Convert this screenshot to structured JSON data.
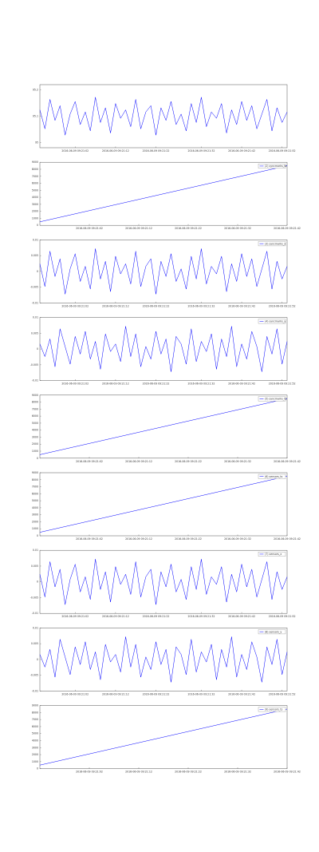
{
  "chart_data": [
    {
      "type": "line",
      "color": "#0000ff",
      "categories": [
        null,
        null,
        null,
        null,
        null,
        null,
        null,
        "2016-06-09 09:21:02",
        null,
        null,
        null,
        null,
        null,
        null,
        null,
        "2016-06-09 09:21:12",
        null,
        null,
        null,
        null,
        null,
        null,
        null,
        "2016-06-09 09:21:22",
        null,
        null,
        null,
        null,
        null,
        null,
        null,
        null,
        "2016-06-09 09:21:32",
        null,
        null,
        null,
        null,
        null,
        null,
        null,
        "2016-06-09 09:21:42",
        null,
        null,
        null,
        null,
        null,
        null,
        null,
        "2016-06-09 09:21:52",
        null
      ],
      "values": [
        95.124,
        95.052,
        95.164,
        95.084,
        95.14,
        95.028,
        95.108,
        95.156,
        95.068,
        95.116,
        95.044,
        95.172,
        95.076,
        95.132,
        95.036,
        95.148,
        95.092,
        95.124,
        95.06,
        95.164,
        95.052,
        95.116,
        95.14,
        95.028,
        95.132,
        95.084,
        95.156,
        95.068,
        95.108,
        95.044,
        95.148,
        95.076,
        95.172,
        95.06,
        95.116,
        95.092,
        95.148,
        95.036,
        95.124,
        95.068,
        95.156,
        95.084,
        95.14,
        95.052,
        95.108,
        95.164,
        95.044,
        95.132,
        95.076,
        95.116
      ],
      "ylim": [
        94.98,
        95.22
      ],
      "yticks": [
        95,
        95.1,
        95.2
      ]
    },
    {
      "type": "line",
      "color": "#0000ff",
      "series_name": "(2) syncmarks_ts",
      "categories": [
        null,
        null,
        "2016-06-09 09:21:02",
        null,
        "2016-06-09 09:21:12",
        null,
        "2016-06-09 09:21:22",
        null,
        "2016-06-09 09:21:32",
        null,
        "2016-06-09 09:21:42"
      ],
      "values": [
        500,
        1300,
        2100,
        2900,
        3700,
        4500,
        5300,
        6100,
        6900,
        7700,
        8500
      ],
      "ylim": [
        0,
        9000
      ],
      "yticks": [
        0,
        1000,
        2000,
        3000,
        4000,
        5000,
        6000,
        7000,
        8000,
        9000
      ]
    },
    {
      "type": "line",
      "color": "#0000ff",
      "series_name": "(3) syncmarks_x",
      "categories": [
        null,
        null,
        null,
        null,
        null,
        null,
        null,
        "2016-06-09 09:21:02",
        null,
        null,
        null,
        null,
        null,
        null,
        null,
        "2016-06-09 09:21:12",
        null,
        null,
        null,
        null,
        null,
        null,
        null,
        "2016-06-09 09:21:22",
        null,
        null,
        null,
        null,
        null,
        null,
        null,
        null,
        "2016-06-09 09:21:32",
        null,
        null,
        null,
        null,
        null,
        null,
        null,
        "2016-06-09 09:21:42",
        null,
        null,
        null,
        null,
        null,
        null,
        null,
        "2016-06-09 09:21:52",
        null
      ],
      "values": [
        0.0024,
        -0.0048,
        0.0064,
        -0.0016,
        0.004,
        -0.0072,
        0.0008,
        0.0056,
        -0.0032,
        0.0016,
        -0.0056,
        0.0072,
        -0.0024,
        0.0032,
        -0.0064,
        0.0048,
        -0.0008,
        0.0024,
        -0.004,
        0.0064,
        -0.0048,
        0.0016,
        0.004,
        -0.0072,
        0.0032,
        -0.0016,
        0.0056,
        -0.0032,
        0.0008,
        -0.0056,
        0.0048,
        -0.0024,
        0.0072,
        -0.004,
        0.0016,
        -0.0008,
        0.0048,
        -0.0064,
        0.0024,
        -0.0032,
        0.0056,
        -0.0016,
        0.004,
        -0.0048,
        0.0008,
        0.0064,
        -0.0056,
        0.0032,
        -0.0024,
        0.0016
      ],
      "ylim": [
        -0.01,
        0.01
      ],
      "yticks": [
        -0.01,
        -0.005,
        0,
        0.005,
        0.01
      ]
    },
    {
      "type": "line",
      "color": "#0000ff",
      "series_name": "(4) syncmarks_y",
      "categories": [
        null,
        null,
        null,
        null,
        null,
        null,
        null,
        "2016-06-09 09:21:02",
        null,
        null,
        null,
        null,
        null,
        null,
        null,
        "2016-06-09 09:21:12",
        null,
        null,
        null,
        null,
        null,
        null,
        null,
        "2016-06-09 09:21:22",
        null,
        null,
        null,
        null,
        null,
        null,
        null,
        null,
        "2016-06-09 09:21:32",
        null,
        null,
        null,
        null,
        null,
        null,
        null,
        "2016-06-09 09:21:42",
        null,
        null,
        null,
        null,
        null,
        null,
        null,
        "2016-06-09 09:21:52",
        null
      ],
      "values": [
        0.0016,
        -0.0024,
        0.0032,
        -0.0056,
        0.0064,
        0.0008,
        -0.0048,
        0.004,
        -0.0016,
        0.0056,
        -0.0032,
        0.0024,
        -0.0064,
        0.0048,
        -0.0008,
        0.0016,
        -0.004,
        0.0072,
        -0.0024,
        0.0048,
        -0.0056,
        0.0008,
        -0.0032,
        0.0056,
        -0.0016,
        0.0032,
        -0.0072,
        0.004,
        0.0016,
        -0.0048,
        0.0064,
        -0.004,
        0.0024,
        -0.0008,
        0.0048,
        -0.0064,
        0.0032,
        -0.0024,
        0.0072,
        -0.0056,
        0.0016,
        -0.0032,
        0.0056,
        0.0008,
        -0.0072,
        0.004,
        -0.0016,
        0.0064,
        -0.0048,
        0.0024
      ],
      "ylim": [
        -0.01,
        0.01
      ],
      "yticks": [
        -0.01,
        -0.005,
        0,
        0.005,
        0.01
      ]
    },
    {
      "type": "line",
      "color": "#0000ff",
      "series_name": "(5) syncmarks_ts",
      "categories": [
        null,
        null,
        "2016-06-09 09:21:02",
        null,
        "2016-06-09 09:21:12",
        null,
        "2016-06-09 09:21:22",
        null,
        "2016-06-09 09:21:32",
        null,
        "2016-06-09 09:21:42"
      ],
      "values": [
        500,
        1300,
        2100,
        2900,
        3700,
        4500,
        5300,
        6100,
        6900,
        7700,
        8500
      ],
      "ylim": [
        0,
        9000
      ],
      "yticks": [
        0,
        1000,
        2000,
        3000,
        4000,
        5000,
        6000,
        7000,
        8000,
        9000
      ]
    },
    {
      "type": "line",
      "color": "#0000ff",
      "series_name": "(6) sensors_ts",
      "categories": [
        null,
        null,
        "2016-06-09 09:21:02",
        null,
        "2016-06-09 09:21:12",
        null,
        "2016-06-09 09:21:22",
        null,
        "2016-06-09 09:21:32",
        null,
        "2016-06-09 09:21:42"
      ],
      "values": [
        500,
        1300,
        2100,
        2900,
        3700,
        4500,
        5300,
        6100,
        6900,
        7700,
        8500
      ],
      "ylim": [
        0,
        9000
      ],
      "yticks": [
        0,
        1000,
        2000,
        3000,
        4000,
        5000,
        6000,
        7000,
        8000,
        9000
      ]
    },
    {
      "type": "line",
      "color": "#0000ff",
      "series_name": "(7) sensors_x",
      "categories": [
        null,
        null,
        null,
        null,
        null,
        null,
        null,
        "2016-06-09 09:21:02",
        null,
        null,
        null,
        null,
        null,
        null,
        null,
        "2016-06-09 09:21:12",
        null,
        null,
        null,
        null,
        null,
        null,
        null,
        "2016-06-09 09:21:22",
        null,
        null,
        null,
        null,
        null,
        null,
        null,
        null,
        "2016-06-09 09:21:32",
        null,
        null,
        null,
        null,
        null,
        null,
        null,
        "2016-06-09 09:21:42",
        null,
        null,
        null,
        null,
        null,
        null,
        null,
        "2016-06-09 09:21:52",
        null
      ],
      "values": [
        0.0024,
        -0.0048,
        0.0064,
        -0.0016,
        0.004,
        -0.0072,
        0.0008,
        0.0056,
        -0.0032,
        0.0016,
        -0.0056,
        0.0072,
        -0.0024,
        0.0032,
        -0.0064,
        0.0048,
        -0.0008,
        0.0024,
        -0.004,
        0.0064,
        -0.0048,
        0.0016,
        0.004,
        -0.0072,
        0.0032,
        -0.0016,
        0.0056,
        -0.0032,
        0.0008,
        -0.0056,
        0.0048,
        -0.0024,
        0.0072,
        -0.004,
        0.0016,
        -0.0008,
        0.0048,
        -0.0064,
        0.0024,
        -0.0032,
        0.0056,
        -0.0016,
        0.004,
        -0.0048,
        0.0008,
        0.0064,
        -0.0056,
        0.0032,
        -0.0024,
        0.0016
      ],
      "ylim": [
        -0.01,
        0.01
      ],
      "yticks": [
        -0.01,
        -0.005,
        0,
        0.005,
        0.01
      ]
    },
    {
      "type": "line",
      "color": "#0000ff",
      "series_name": "(8) sensors_y",
      "categories": [
        null,
        null,
        null,
        null,
        null,
        null,
        null,
        "2016-06-09 09:21:02",
        null,
        null,
        null,
        null,
        null,
        null,
        null,
        "2016-06-09 09:21:12",
        null,
        null,
        null,
        null,
        null,
        null,
        null,
        "2016-06-09 09:21:22",
        null,
        null,
        null,
        null,
        null,
        null,
        null,
        null,
        "2016-06-09 09:21:32",
        null,
        null,
        null,
        null,
        null,
        null,
        null,
        "2016-06-09 09:21:42",
        null,
        null,
        null,
        null,
        null,
        null,
        null,
        "2016-06-09 09:21:52",
        null
      ],
      "values": [
        0.0016,
        -0.0024,
        0.0032,
        -0.0056,
        0.0064,
        0.0008,
        -0.0048,
        0.004,
        -0.0016,
        0.0056,
        -0.0032,
        0.0024,
        -0.0064,
        0.0048,
        -0.0008,
        0.0016,
        -0.004,
        0.0072,
        -0.0024,
        0.0048,
        -0.0056,
        0.0008,
        -0.0032,
        0.0056,
        -0.0016,
        0.0032,
        -0.0072,
        0.004,
        0.0016,
        -0.0048,
        0.0064,
        -0.004,
        0.0024,
        -0.0008,
        0.0048,
        -0.0064,
        0.0032,
        -0.0024,
        0.0072,
        -0.0056,
        0.0016,
        -0.0032,
        0.0056,
        0.0008,
        -0.0072,
        0.004,
        -0.0016,
        0.0064,
        -0.0048,
        0.0024
      ],
      "ylim": [
        -0.01,
        0.01
      ],
      "yticks": [
        -0.01,
        -0.005,
        0,
        0.005,
        0.01
      ]
    },
    {
      "type": "line",
      "color": "#0000ff",
      "series_name": "(9) sensors_ts",
      "categories": [
        null,
        null,
        "2016-06-09 09:21:02",
        null,
        "2016-06-09 09:21:12",
        null,
        "2016-06-09 09:21:22",
        null,
        "2016-06-09 09:21:32",
        null,
        "2016-06-09 09:21:42"
      ],
      "values": [
        500,
        1300,
        2100,
        2900,
        3700,
        4500,
        5300,
        6100,
        6900,
        7700,
        8500
      ],
      "ylim": [
        0,
        9000
      ],
      "yticks": [
        0,
        1000,
        2000,
        3000,
        4000,
        5000,
        6000,
        7000,
        8000,
        9000
      ]
    }
  ]
}
